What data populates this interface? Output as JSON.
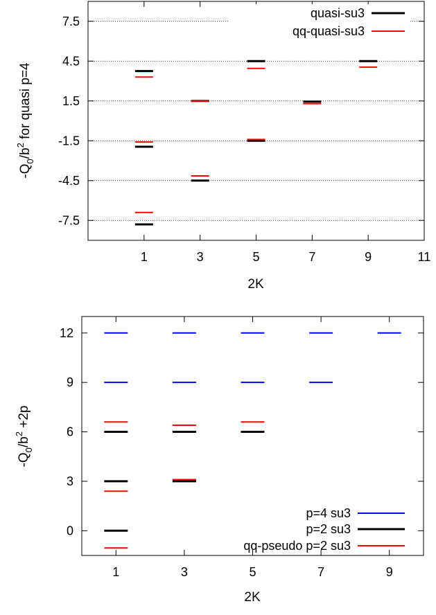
{
  "chart_data": [
    {
      "type": "scatter",
      "marker": "horizontal-dash",
      "xlabel": "2K",
      "ylabel_main": "-Q",
      "ylabel_sub": "0",
      "ylabel_rest1": "/b",
      "ylabel_sup": "2",
      "ylabel_rest2": " for quasi p=4",
      "xlim": [
        -1,
        11
      ],
      "ylim": [
        -9,
        9
      ],
      "xticks": [
        1,
        3,
        5,
        7,
        9,
        11
      ],
      "xtick_labels": [
        "1",
        "3",
        "5",
        "7",
        "9",
        "11"
      ],
      "yticks": [
        -7.5,
        -4.5,
        -1.5,
        1.5,
        4.5,
        7.5
      ],
      "ytick_labels": [
        "-7.5",
        "-4.5",
        "-1.5",
        "1.5",
        "4.5",
        "7.5"
      ],
      "grid": "horizontal dotted",
      "legend_position": "top-right",
      "series": [
        {
          "name": "quasi-su3",
          "color": "#000000",
          "points": [
            {
              "x": 1,
              "y": 3.75
            },
            {
              "x": 1,
              "y": -1.95
            },
            {
              "x": 1,
              "y": -7.8
            },
            {
              "x": 3,
              "y": 1.5
            },
            {
              "x": 3,
              "y": -4.5
            },
            {
              "x": 5,
              "y": 4.5
            },
            {
              "x": 5,
              "y": -1.5
            },
            {
              "x": 7,
              "y": 1.45
            },
            {
              "x": 9,
              "y": 4.5
            }
          ]
        },
        {
          "name": "qq-quasi-su3",
          "color": "#ff0000",
          "points": [
            {
              "x": 1,
              "y": 3.3
            },
            {
              "x": 1,
              "y": -1.6
            },
            {
              "x": 1,
              "y": -6.9
            },
            {
              "x": 3,
              "y": 1.5
            },
            {
              "x": 3,
              "y": -4.15
            },
            {
              "x": 5,
              "y": 3.95
            },
            {
              "x": 5,
              "y": -1.4
            },
            {
              "x": 7,
              "y": 1.3
            },
            {
              "x": 9,
              "y": 4.05
            }
          ]
        }
      ]
    },
    {
      "type": "scatter",
      "marker": "horizontal-dash",
      "xlabel": "2K",
      "ylabel_main": "-Q",
      "ylabel_sub": "0",
      "ylabel_rest1": "/b",
      "ylabel_sup": "2",
      "ylabel_rest2": " +2p",
      "xlim": [
        0,
        10
      ],
      "ylim": [
        -1.5,
        13
      ],
      "xticks": [
        1,
        3,
        5,
        7,
        9
      ],
      "xtick_labels": [
        "1",
        "3",
        "5",
        "7",
        "9"
      ],
      "yticks": [
        0,
        3,
        6,
        9,
        12
      ],
      "ytick_labels": [
        "0",
        "3",
        "6",
        "9",
        "12"
      ],
      "grid": "none",
      "legend_position": "bottom-right",
      "series": [
        {
          "name": "p=4 su3",
          "color": "#0000ff",
          "points": [
            {
              "x": 1,
              "y": 12
            },
            {
              "x": 1,
              "y": 9
            },
            {
              "x": 3,
              "y": 12
            },
            {
              "x": 3,
              "y": 9
            },
            {
              "x": 5,
              "y": 12
            },
            {
              "x": 5,
              "y": 9
            },
            {
              "x": 7,
              "y": 12
            },
            {
              "x": 7,
              "y": 9
            },
            {
              "x": 9,
              "y": 12
            }
          ]
        },
        {
          "name": "p=2 su3",
          "color": "#000000",
          "points": [
            {
              "x": 1,
              "y": 6
            },
            {
              "x": 1,
              "y": 3
            },
            {
              "x": 1,
              "y": 0
            },
            {
              "x": 3,
              "y": 6
            },
            {
              "x": 3,
              "y": 3
            },
            {
              "x": 5,
              "y": 6
            }
          ]
        },
        {
          "name": "qq-pseudo p=2 su3",
          "color": "#ff0000",
          "points": [
            {
              "x": 1,
              "y": 6.6
            },
            {
              "x": 1,
              "y": 2.4
            },
            {
              "x": 1,
              "y": -1.05
            },
            {
              "x": 3,
              "y": 6.4
            },
            {
              "x": 3,
              "y": 3.1
            },
            {
              "x": 5,
              "y": 6.6
            }
          ]
        }
      ]
    }
  ]
}
